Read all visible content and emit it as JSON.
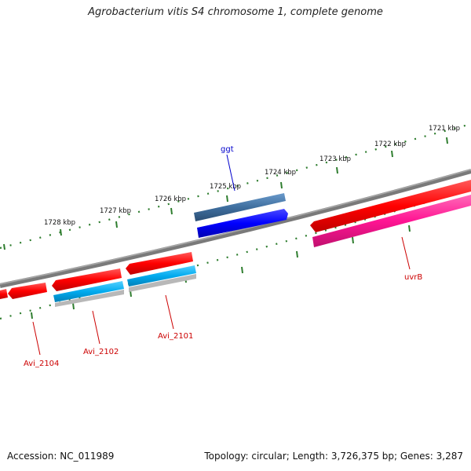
{
  "title": "Agrobacterium vitis S4 chromosome 1, complete genome",
  "footer": {
    "accession": "Accession: NC_011989",
    "summary": "Topology: circular; Length: 3,726,375 bp; Genes: 3,287"
  },
  "ruler": [
    "1721 kbp",
    "1722 kbp",
    "1723 kbp",
    "1724 kbp",
    "1725 kbp",
    "1726 kbp",
    "1727 kbp",
    "1728 kbp"
  ],
  "genes": [
    {
      "name": "ggt",
      "color": "#0000cc"
    },
    {
      "name": "uvrB",
      "color": "#cc0000"
    },
    {
      "name": "Avi_2101",
      "color": "#cc0000"
    },
    {
      "name": "Avi_2102",
      "color": "#cc0000"
    },
    {
      "name": "Avi_2104",
      "color": "#cc0000"
    }
  ],
  "colors": {
    "backbone": "#808080",
    "tick": "#2e7d2e",
    "forward_cds": "#ff0000",
    "forward_gene": "#1a1aff",
    "forward_gene_light": "#4a7aad",
    "reverse_cds": "#00aaee",
    "reverse_gene": "#ff1493"
  }
}
